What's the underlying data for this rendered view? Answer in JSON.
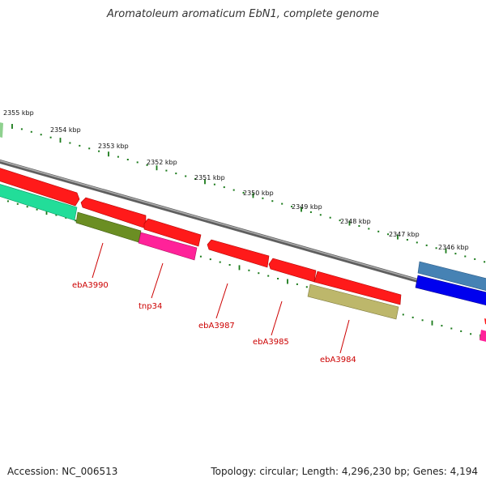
{
  "title": "Aromatoleum aromaticum EbN1, complete genome",
  "accession": "Accession: NC_006513",
  "topology": "Topology: circular; Length: 4,296,230 bp; Genes: 4,194",
  "ticks": [
    {
      "label": "2355 kbp"
    },
    {
      "label": "2354 kbp"
    },
    {
      "label": "2353 kbp"
    },
    {
      "label": "2352 kbp"
    },
    {
      "label": "2351 kbp"
    },
    {
      "label": "2350 kbp"
    },
    {
      "label": "2349 kbp"
    },
    {
      "label": "2348 kbp"
    },
    {
      "label": "2347 kbp"
    },
    {
      "label": "2346 kbp"
    }
  ],
  "gene_labels": [
    "ebA3990",
    "tnp34",
    "ebA3987",
    "ebA3985",
    "ebA3984"
  ],
  "colors": {
    "backbone": "#808080",
    "tick": "#1a7a1a",
    "cds_red": "#ff1a1a",
    "teal": "#22dd99",
    "olive": "#6b8e23",
    "magenta": "#ff2299",
    "khaki": "#bdb76b",
    "steel_blue": "#4682b4",
    "blue": "#0000ee",
    "label_red": "#cc0000"
  }
}
